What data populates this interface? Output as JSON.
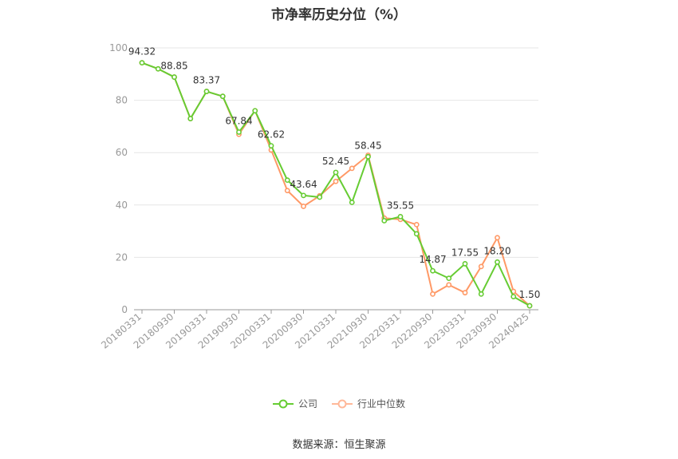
{
  "chart_data": {
    "type": "line",
    "title": "市净率历史分位（%）",
    "ylim": [
      0,
      100
    ],
    "yticks": [
      0,
      20,
      40,
      60,
      80,
      100
    ],
    "x": [
      "20180331",
      "20180630",
      "20180930",
      "20181231",
      "20190331",
      "20190630",
      "20190930",
      "20191231",
      "20200331",
      "20200630",
      "20200930",
      "20201231",
      "20210331",
      "20210630",
      "20210930",
      "20211231",
      "20220331",
      "20220630",
      "20220930",
      "20221231",
      "20230331",
      "20230630",
      "20230930",
      "20231231",
      "20240425"
    ],
    "xtick_labels": [
      "20180331",
      "20180930",
      "20190331",
      "20190930",
      "20200331",
      "20200930",
      "20210331",
      "20210930",
      "20220331",
      "20220930",
      "20230331",
      "20230930",
      "20240425"
    ],
    "series": [
      {
        "name": "公司",
        "color": "#66cc33",
        "values": [
          94.32,
          92.0,
          88.85,
          73.0,
          83.37,
          81.5,
          67.84,
          76.0,
          62.62,
          49.5,
          43.64,
          43.0,
          52.45,
          41.0,
          58.45,
          34.0,
          35.55,
          29.0,
          14.87,
          12.0,
          17.55,
          6.0,
          18.2,
          5.0,
          1.5
        ]
      },
      {
        "name": "行业中位数",
        "color": "#ff9966",
        "values": [
          94.32,
          92.0,
          88.85,
          73.0,
          83.37,
          81.5,
          67.0,
          76.0,
          61.0,
          45.5,
          39.5,
          43.5,
          49.0,
          54.0,
          59.0,
          35.0,
          34.5,
          32.5,
          6.0,
          9.5,
          6.5,
          16.5,
          27.5,
          7.0,
          1.5
        ]
      }
    ],
    "data_labels": [
      {
        "text": "94.32",
        "index": 0,
        "value": 94.32
      },
      {
        "text": "88.85",
        "index": 2,
        "value": 88.85
      },
      {
        "text": "83.37",
        "index": 4,
        "value": 83.37
      },
      {
        "text": "67.84",
        "index": 6,
        "value": 67.84
      },
      {
        "text": "62.62",
        "index": 8,
        "value": 62.62
      },
      {
        "text": "43.64",
        "index": 10,
        "value": 43.64
      },
      {
        "text": "52.45",
        "index": 12,
        "value": 52.45
      },
      {
        "text": "58.45",
        "index": 14,
        "value": 58.45
      },
      {
        "text": "35.55",
        "index": 16,
        "value": 35.55
      },
      {
        "text": "14.87",
        "index": 18,
        "value": 14.87
      },
      {
        "text": "17.55",
        "index": 20,
        "value": 17.55
      },
      {
        "text": "18.20",
        "index": 22,
        "value": 18.2
      },
      {
        "text": "1.50",
        "index": 24,
        "value": 1.5
      }
    ],
    "grid": true,
    "legend_position": "bottom-center"
  },
  "source_note": "数据来源：恒生聚源"
}
